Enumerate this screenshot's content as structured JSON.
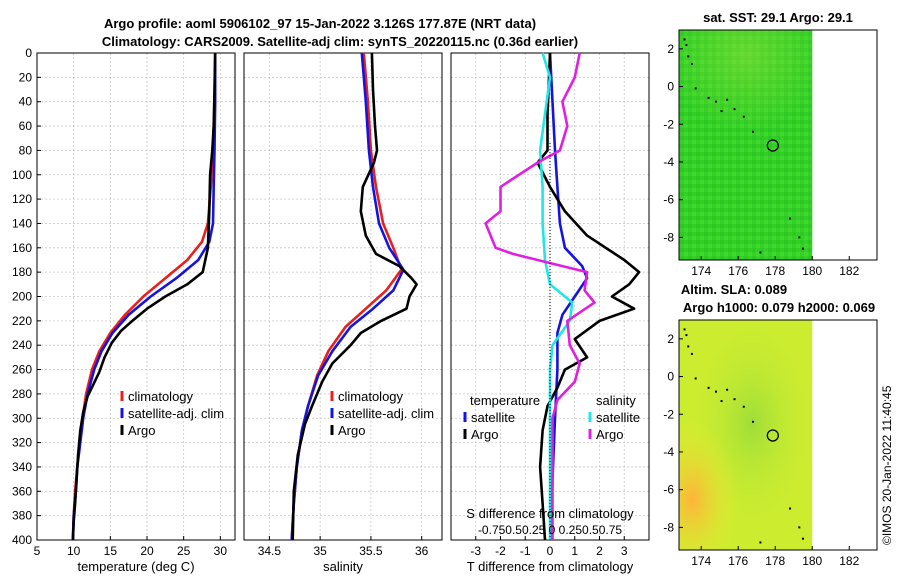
{
  "title_line1": "Argo profile: aoml 5906102_97 15-Jan-2022 3.126S 177.87E (NRT data)",
  "title_line2": "Climatology: CARS2009. Satellite-adj clim: synTS_20220115.nc (0.36d earlier)",
  "timestamp": "©IMOS 20-Jan-2022 11:40:45",
  "colors": {
    "climatology": "#e8201c",
    "satellite": "#1414e0",
    "argo": "#000000",
    "sat_t": "#22e6e6",
    "argo_s": "#e020e0"
  },
  "chart_data": [
    {
      "type": "line",
      "id": "temp",
      "xlabel": "temperature (deg C)",
      "ylabel": "",
      "xlim": [
        5,
        32
      ],
      "ylim": [
        400,
        0
      ],
      "xticks": [
        "5",
        "10",
        "15",
        "20",
        "25",
        "30"
      ],
      "yticks": [
        "0",
        "20",
        "40",
        "60",
        "80",
        "100",
        "120",
        "140",
        "160",
        "180",
        "200",
        "220",
        "240",
        "260",
        "280",
        "300",
        "320",
        "340",
        "360",
        "380",
        "400"
      ],
      "legend": [
        "climatology",
        "satellite-adj. clim",
        "Argo"
      ],
      "series": [
        {
          "name": "climatology",
          "color": "#e8201c",
          "points": [
            [
              29.3,
              0
            ],
            [
              29.2,
              40
            ],
            [
              29.0,
              80
            ],
            [
              28.7,
              110
            ],
            [
              28.3,
              140
            ],
            [
              27.5,
              155
            ],
            [
              25.5,
              170
            ],
            [
              22.5,
              185
            ],
            [
              19.5,
              200
            ],
            [
              17,
              215
            ],
            [
              15,
              230
            ],
            [
              13.5,
              245
            ],
            [
              12.5,
              260
            ],
            [
              11.7,
              280
            ],
            [
              11.2,
              300
            ],
            [
              10.8,
              320
            ],
            [
              10.5,
              340
            ],
            [
              10.2,
              360
            ],
            [
              10.0,
              380
            ],
            [
              9.9,
              400
            ]
          ]
        },
        {
          "name": "satellite-adj. clim",
          "color": "#1414e0",
          "points": [
            [
              29.3,
              0
            ],
            [
              29.3,
              40
            ],
            [
              29.2,
              80
            ],
            [
              29.1,
              110
            ],
            [
              29,
              140
            ],
            [
              28.5,
              155
            ],
            [
              27,
              170
            ],
            [
              24,
              185
            ],
            [
              20.5,
              200
            ],
            [
              17.5,
              215
            ],
            [
              15.3,
              230
            ],
            [
              13.8,
              245
            ],
            [
              12.8,
              260
            ],
            [
              11.9,
              280
            ],
            [
              11.3,
              300
            ],
            [
              10.9,
              320
            ],
            [
              10.5,
              340
            ],
            [
              10.3,
              360
            ],
            [
              10.0,
              380
            ],
            [
              9.9,
              400
            ]
          ]
        },
        {
          "name": "Argo",
          "color": "#000000",
          "points": [
            [
              29.3,
              0
            ],
            [
              29.2,
              30
            ],
            [
              29.1,
              60
            ],
            [
              28.9,
              80
            ],
            [
              28.6,
              100
            ],
            [
              28.5,
              130
            ],
            [
              28.3,
              160
            ],
            [
              27.6,
              180
            ],
            [
              25.5,
              190
            ],
            [
              22.5,
              200
            ],
            [
              20,
              210
            ],
            [
              18,
              220
            ],
            [
              16.5,
              228
            ],
            [
              15.2,
              238
            ],
            [
              14.2,
              250
            ],
            [
              13.5,
              262
            ],
            [
              12.7,
              272
            ],
            [
              11.9,
              282
            ],
            [
              11.3,
              295
            ],
            [
              10.9,
              310
            ],
            [
              10.6,
              330
            ],
            [
              10.4,
              350
            ],
            [
              10.2,
              370
            ],
            [
              10.0,
              385
            ],
            [
              9.9,
              400
            ]
          ]
        }
      ]
    },
    {
      "type": "line",
      "id": "sal",
      "xlabel": "salinity",
      "ylabel": "",
      "xlim": [
        34.25,
        36.2
      ],
      "ylim": [
        400,
        0
      ],
      "xticks": [
        "34.5",
        "35",
        "35.5",
        "36"
      ],
      "legend": [
        "climatology",
        "satellite-adj. clim",
        "Argo"
      ],
      "series": [
        {
          "name": "climatology",
          "color": "#e8201c",
          "points": [
            [
              35.43,
              0
            ],
            [
              35.47,
              40
            ],
            [
              35.5,
              80
            ],
            [
              35.55,
              110
            ],
            [
              35.62,
              140
            ],
            [
              35.72,
              160
            ],
            [
              35.8,
              178
            ],
            [
              35.65,
              195
            ],
            [
              35.45,
              210
            ],
            [
              35.25,
              225
            ],
            [
              35.08,
              245
            ],
            [
              34.97,
              265
            ],
            [
              34.88,
              290
            ],
            [
              34.82,
              310
            ],
            [
              34.77,
              340
            ],
            [
              34.74,
              370
            ],
            [
              34.72,
              400
            ]
          ]
        },
        {
          "name": "satellite-adj. clim",
          "color": "#1414e0",
          "points": [
            [
              35.41,
              0
            ],
            [
              35.45,
              40
            ],
            [
              35.48,
              80
            ],
            [
              35.52,
              110
            ],
            [
              35.58,
              140
            ],
            [
              35.68,
              160
            ],
            [
              35.82,
              178
            ],
            [
              35.72,
              195
            ],
            [
              35.52,
              210
            ],
            [
              35.3,
              225
            ],
            [
              35.12,
              245
            ],
            [
              34.98,
              265
            ],
            [
              34.88,
              290
            ],
            [
              34.82,
              310
            ],
            [
              34.77,
              340
            ],
            [
              34.74,
              370
            ],
            [
              34.72,
              400
            ]
          ]
        },
        {
          "name": "Argo",
          "color": "#000000",
          "points": [
            [
              35.51,
              0
            ],
            [
              35.52,
              30
            ],
            [
              35.54,
              60
            ],
            [
              35.56,
              80
            ],
            [
              35.53,
              90
            ],
            [
              35.42,
              110
            ],
            [
              35.4,
              130
            ],
            [
              35.45,
              150
            ],
            [
              35.55,
              165
            ],
            [
              35.78,
              175
            ],
            [
              35.9,
              185
            ],
            [
              35.95,
              190
            ],
            [
              35.88,
              200
            ],
            [
              35.85,
              210
            ],
            [
              35.6,
              220
            ],
            [
              35.4,
              230
            ],
            [
              35.3,
              240
            ],
            [
              35.12,
              255
            ],
            [
              35.02,
              270
            ],
            [
              34.92,
              290
            ],
            [
              34.85,
              305
            ],
            [
              34.78,
              330
            ],
            [
              34.74,
              360
            ],
            [
              34.73,
              400
            ]
          ]
        }
      ]
    },
    {
      "type": "line",
      "id": "diff",
      "xlabel": "T difference from climatology",
      "xlabel_top": "S difference from climatology",
      "xlim": [
        -4,
        4
      ],
      "ylim": [
        400,
        0
      ],
      "xticks": [
        "-3",
        "-2",
        "-1",
        "0",
        "1",
        "2",
        "3"
      ],
      "s_ticks": "-0.750.50.25  0  0.250.50.75",
      "legend_left_head": "temperature",
      "legend_right_head": "salinity",
      "legend_left": [
        "satellite",
        "Argo"
      ],
      "legend_right": [
        "satellite",
        "Argo"
      ],
      "series": [
        {
          "name": "satellite T",
          "color": "#1414e0",
          "points": [
            [
              0,
              0
            ],
            [
              0.1,
              40
            ],
            [
              0.2,
              80
            ],
            [
              0.3,
              110
            ],
            [
              0.4,
              140
            ],
            [
              0.6,
              160
            ],
            [
              1.3,
              175
            ],
            [
              1.5,
              185
            ],
            [
              1.0,
              200
            ],
            [
              0.5,
              215
            ],
            [
              0.3,
              230
            ],
            [
              0.3,
              260
            ],
            [
              0.2,
              300
            ],
            [
              0.1,
              350
            ],
            [
              0.05,
              400
            ]
          ]
        },
        {
          "name": "Argo T",
          "color": "#000000",
          "points": [
            [
              0,
              0
            ],
            [
              -0.1,
              50
            ],
            [
              -0.1,
              80
            ],
            [
              -0.5,
              90
            ],
            [
              0,
              110
            ],
            [
              0.6,
              130
            ],
            [
              1.5,
              150
            ],
            [
              3.0,
              170
            ],
            [
              3.6,
              180
            ],
            [
              3.2,
              190
            ],
            [
              2.5,
              200
            ],
            [
              3.4,
              210
            ],
            [
              2.0,
              220
            ],
            [
              1.0,
              235
            ],
            [
              1.5,
              250
            ],
            [
              0.6,
              260
            ],
            [
              0.3,
              275
            ],
            [
              -0.1,
              290
            ],
            [
              -0.3,
              310
            ],
            [
              -0.4,
              340
            ],
            [
              -0.3,
              370
            ],
            [
              -0.2,
              400
            ]
          ]
        },
        {
          "name": "satellite S",
          "color": "#22e6e6",
          "points": [
            [
              -0.3,
              0
            ],
            [
              0,
              20
            ],
            [
              -0.2,
              50
            ],
            [
              -0.4,
              80
            ],
            [
              -0.3,
              110
            ],
            [
              -0.3,
              140
            ],
            [
              -0.2,
              170
            ],
            [
              0,
              190
            ],
            [
              0.9,
              205
            ],
            [
              0.8,
              220
            ],
            [
              0.1,
              240
            ],
            [
              0,
              260
            ],
            [
              0,
              300
            ],
            [
              0,
              400
            ]
          ]
        },
        {
          "name": "Argo S",
          "color": "#e020e0",
          "points": [
            [
              1.2,
              0
            ],
            [
              1.0,
              20
            ],
            [
              0.5,
              40
            ],
            [
              0.7,
              60
            ],
            [
              0.4,
              80
            ],
            [
              -0.5,
              90
            ],
            [
              -2.0,
              110
            ],
            [
              -2.0,
              130
            ],
            [
              -2.6,
              140
            ],
            [
              -2.4,
              150
            ],
            [
              -2.2,
              160
            ],
            [
              -1.5,
              165
            ],
            [
              0.5,
              175
            ],
            [
              1.5,
              180
            ],
            [
              1.4,
              195
            ],
            [
              1.8,
              205
            ],
            [
              0.7,
              220
            ],
            [
              0.8,
              240
            ],
            [
              1.2,
              255
            ],
            [
              1.0,
              270
            ],
            [
              0.3,
              285
            ],
            [
              0.1,
              300
            ],
            [
              0.1,
              350
            ],
            [
              0.1,
              400
            ]
          ]
        }
      ]
    },
    {
      "type": "heatmap",
      "id": "sst",
      "title": "sat. SST: 29.1  Argo: 29.1",
      "xticks": [
        "174",
        "176",
        "178",
        "180",
        "182"
      ],
      "yticks": [
        "2",
        "0",
        "-2",
        "-4",
        "-6",
        "-8"
      ],
      "xlim": [
        172.8,
        183.5
      ],
      "ylim": [
        -9.2,
        3
      ],
      "data_xmax": 180,
      "marker": [
        177.87,
        -3.126
      ]
    },
    {
      "type": "heatmap",
      "id": "sla",
      "title": "Altim. SLA: 0.089",
      "title2": "Argo h1000: 0.079 h2000: 0.069",
      "xticks": [
        "174",
        "176",
        "178",
        "180",
        "182"
      ],
      "yticks": [
        "2",
        "0",
        "-2",
        "-4",
        "-6",
        "-8"
      ],
      "xlim": [
        172.8,
        183.5
      ],
      "ylim": [
        -9.2,
        3
      ],
      "data_xmax": 180,
      "marker": [
        177.87,
        -3.126
      ]
    }
  ]
}
